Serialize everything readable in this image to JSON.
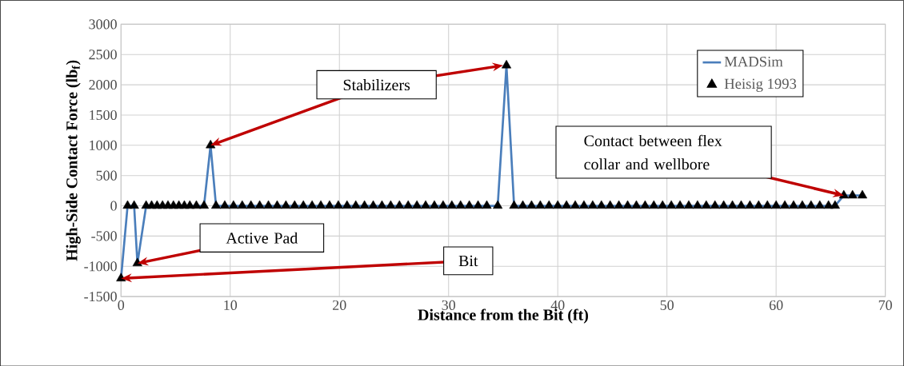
{
  "chart_data": {
    "type": "line",
    "xlabel": "Distance from the Bit (ft)",
    "ylabel": "High-Side Contact Force (lb$_{f}$)",
    "x": [
      0,
      0.6,
      1.2,
      1.5,
      2.3,
      2.8,
      3.3,
      3.8,
      4.3,
      4.8,
      5.3,
      5.8,
      6.3,
      6.9,
      7.6,
      8.2,
      8.7,
      9.5,
      10.3,
      11.1,
      11.9,
      12.7,
      13.5,
      14.3,
      15.1,
      15.9,
      16.7,
      17.5,
      18.3,
      19.1,
      19.9,
      20.7,
      21.5,
      22.3,
      23.1,
      23.9,
      24.7,
      25.5,
      26.3,
      27.1,
      27.9,
      28.7,
      29.5,
      30.3,
      31.1,
      31.9,
      32.7,
      33.5,
      34.5,
      35.3,
      36.0,
      36.8,
      37.6,
      38.4,
      39.2,
      40.0,
      40.8,
      41.6,
      42.4,
      43.2,
      44.0,
      44.8,
      45.6,
      46.4,
      47.2,
      48.0,
      48.8,
      49.6,
      50.4,
      51.2,
      52.0,
      52.8,
      53.6,
      54.4,
      55.2,
      56.0,
      56.8,
      57.6,
      58.4,
      59.2,
      60.0,
      60.8,
      61.6,
      62.4,
      63.2,
      64.0,
      64.8,
      65.4,
      66.2,
      67.0,
      67.9
    ],
    "series": [
      {
        "name": "MADSim",
        "color": "#4a7ebb",
        "marker": "none",
        "line_style": "solid",
        "values": [
          -1200,
          0,
          0,
          -950,
          0,
          0,
          0,
          0,
          0,
          0,
          0,
          0,
          0,
          0,
          0,
          1000,
          0,
          0,
          0,
          0,
          0,
          0,
          0,
          0,
          0,
          0,
          0,
          0,
          0,
          0,
          0,
          0,
          0,
          0,
          0,
          0,
          0,
          0,
          0,
          0,
          0,
          0,
          0,
          0,
          0,
          0,
          0,
          0,
          0,
          2320,
          0,
          0,
          0,
          0,
          0,
          0,
          0,
          0,
          0,
          0,
          0,
          0,
          0,
          0,
          0,
          0,
          0,
          0,
          0,
          0,
          0,
          0,
          0,
          0,
          0,
          0,
          0,
          0,
          0,
          0,
          0,
          0,
          0,
          0,
          0,
          0,
          0,
          0,
          170,
          170,
          170
        ]
      },
      {
        "name": "Heisig 1993",
        "type": "scatter",
        "color": "#000000",
        "marker": "triangle",
        "values": [
          -1200,
          0,
          0,
          -950,
          0,
          0,
          0,
          0,
          0,
          0,
          0,
          0,
          0,
          0,
          0,
          1000,
          0,
          0,
          0,
          0,
          0,
          0,
          0,
          0,
          0,
          0,
          0,
          0,
          0,
          0,
          0,
          0,
          0,
          0,
          0,
          0,
          0,
          0,
          0,
          0,
          0,
          0,
          0,
          0,
          0,
          0,
          0,
          0,
          0,
          2320,
          0,
          0,
          0,
          0,
          0,
          0,
          0,
          0,
          0,
          0,
          0,
          0,
          0,
          0,
          0,
          0,
          0,
          0,
          0,
          0,
          0,
          0,
          0,
          0,
          0,
          0,
          0,
          0,
          0,
          0,
          0,
          0,
          0,
          0,
          0,
          0,
          0,
          0,
          170,
          170,
          170
        ]
      }
    ],
    "xlim": [
      0,
      70
    ],
    "xticks": [
      0,
      10,
      20,
      30,
      40,
      50,
      60,
      70
    ],
    "ylim": [
      -1500,
      3000
    ],
    "yticks": [
      -1500,
      -1000,
      -500,
      0,
      500,
      1000,
      1500,
      2000,
      2500,
      3000
    ],
    "grid": true,
    "legend": "top right",
    "annotations": [
      {
        "text": "Stabilizers",
        "x": 8.2,
        "y": 1000
      },
      {
        "text": "Active Pad",
        "x": 1.5,
        "y": -950
      },
      {
        "text": "Bit",
        "x": 0,
        "y": -1200
      },
      {
        "text": "Contact between flex collar and wellbore",
        "x": 66.2,
        "y": 170
      }
    ]
  }
}
